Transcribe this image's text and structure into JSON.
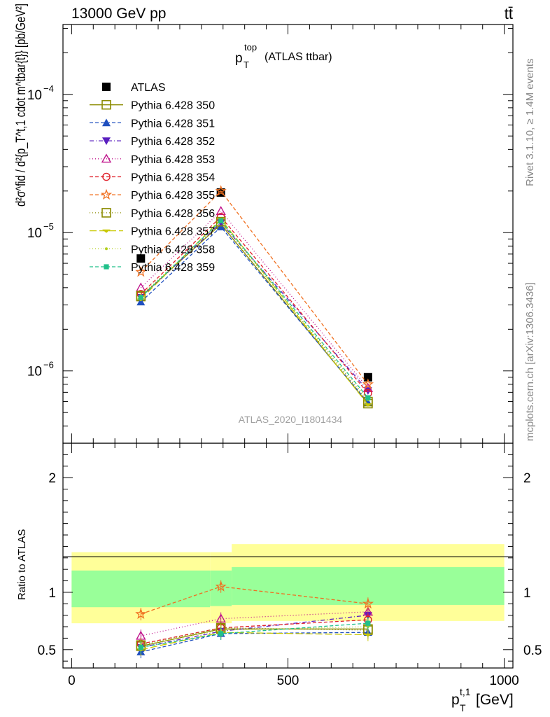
{
  "header": {
    "energy_label": "13000 GeV pp",
    "process_label": "tt̄"
  },
  "side_labels": {
    "rivet": "Rivet 3.1.10, ≥ 1.4M events",
    "mcplots": "mcplots.cern.ch [arXiv:1306.3436]"
  },
  "chart_data": [
    {
      "type": "line",
      "panel": "main",
      "title": "p_T^top (ATLAS ttbar)",
      "title_main": "p",
      "title_sup": "top",
      "title_sub": "T",
      "title_suffix": "(ATLAS ttbar)",
      "ylabel": "d²σ^fid / d²{p_T^t,1 cdot m^tbar{t}} [pb/GeV²]",
      "watermark": "ATLAS_2020_I1801434",
      "yscale": "log",
      "ylim": [
        3e-07,
        0.00032
      ],
      "xlim": [
        -20,
        1020
      ],
      "y_tick_labels": [
        "10^-6",
        "10^-5",
        "10^-4"
      ],
      "x": [
        160,
        345,
        685
      ],
      "series": [
        {
          "name": "ATLAS",
          "color": "#000000",
          "marker": "square-filled",
          "dash": "none",
          "values": [
            6.5e-06,
            1.95e-05,
            9e-07
          ]
        },
        {
          "name": "Pythia 6.428 350",
          "color": "#8b8b00",
          "marker": "square-open",
          "dash": "solid",
          "values": [
            3.45e-06,
            1.15e-05,
            5.8e-07
          ]
        },
        {
          "name": "Pythia 6.428 351",
          "color": "#1f4fbf",
          "marker": "triangle-up-filled",
          "dash": "5,3",
          "values": [
            3.15e-06,
            1.1e-05,
            5.9e-07
          ]
        },
        {
          "name": "Pythia 6.428 352",
          "color": "#5a1fbf",
          "marker": "triangle-down-filled",
          "dash": "6,3,1,3",
          "values": [
            3.4e-06,
            1.18e-05,
            7.2e-07
          ]
        },
        {
          "name": "Pythia 6.428 353",
          "color": "#c0148c",
          "marker": "triangle-up-open",
          "dash": "1,3",
          "values": [
            4e-06,
            1.43e-05,
            7.5e-07
          ]
        },
        {
          "name": "Pythia 6.428 354",
          "color": "#e0202a",
          "marker": "circle-open",
          "dash": "5,3",
          "values": [
            3.6e-06,
            1.3e-05,
            6.9e-07
          ]
        },
        {
          "name": "Pythia 6.428 355",
          "color": "#f07020",
          "marker": "star-open",
          "dash": "5,3",
          "values": [
            5.2e-06,
            2e-05,
            8e-07
          ]
        },
        {
          "name": "Pythia 6.428 356",
          "color": "#8b8b00",
          "marker": "square-open",
          "dash": "1,3",
          "values": [
            3.5e-06,
            1.2e-05,
            6e-07
          ]
        },
        {
          "name": "Pythia 6.428 357",
          "color": "#c8c800",
          "marker": "tri-filled",
          "dash": "10,4",
          "values": [
            3.3e-06,
            1.25e-05,
            5.7e-07
          ]
        },
        {
          "name": "Pythia 6.428 358",
          "color": "#b4d020",
          "marker": "dot",
          "dash": "1,3",
          "values": [
            3.5e-06,
            1.2e-05,
            6.2e-07
          ]
        },
        {
          "name": "Pythia 6.428 359",
          "color": "#20c08a",
          "marker": "square-filled-small",
          "dash": "5,3",
          "values": [
            3.4e-06,
            1.22e-05,
            6.4e-07
          ]
        }
      ]
    },
    {
      "type": "line",
      "panel": "ratio",
      "ylabel": "Ratio to ATLAS",
      "xlabel": "p_T^t,1 [GeV]",
      "xlabel_main": "p",
      "xlabel_sup": "t,1",
      "xlabel_sub": "T",
      "xlabel_suffix": "[GeV]",
      "xlim": [
        -20,
        1020
      ],
      "ylim": [
        0.34,
        2.3
      ],
      "x_ticks": [
        0,
        500,
        1000
      ],
      "y_ticks_labeled": [
        0.5,
        1,
        2
      ],
      "bands": [
        {
          "x_from": 0,
          "x_to": 320,
          "yellow": [
            0.73,
            1.35
          ],
          "green": [
            0.87,
            1.19
          ]
        },
        {
          "x_from": 320,
          "x_to": 370,
          "yellow": [
            0.73,
            1.35
          ],
          "green": [
            0.88,
            1.19
          ]
        },
        {
          "x_from": 370,
          "x_to": 1000,
          "yellow": [
            0.75,
            1.42
          ],
          "green": [
            0.89,
            1.22
          ]
        }
      ],
      "x": [
        160,
        345,
        685
      ],
      "series": [
        {
          "name": "Pythia 6.428 350",
          "color": "#8b8b00",
          "marker": "square-open",
          "dash": "solid",
          "values": [
            0.53,
            0.68,
            0.68
          ]
        },
        {
          "name": "Pythia 6.428 351",
          "color": "#1f4fbf",
          "marker": "triangle-up-filled",
          "dash": "5,3",
          "values": [
            0.48,
            0.64,
            0.65
          ]
        },
        {
          "name": "Pythia 6.428 352",
          "color": "#5a1fbf",
          "marker": "triangle-down-filled",
          "dash": "6,3,1,3",
          "values": [
            0.52,
            0.66,
            0.8
          ]
        },
        {
          "name": "Pythia 6.428 353",
          "color": "#c0148c",
          "marker": "triangle-up-open",
          "dash": "1,3",
          "values": [
            0.62,
            0.77,
            0.83
          ]
        },
        {
          "name": "Pythia 6.428 354",
          "color": "#e0202a",
          "marker": "circle-open",
          "dash": "5,3",
          "values": [
            0.55,
            0.69,
            0.76
          ]
        },
        {
          "name": "Pythia 6.428 355",
          "color": "#f07020",
          "marker": "star-open",
          "dash": "5,3",
          "values": [
            0.81,
            1.05,
            0.9
          ]
        },
        {
          "name": "Pythia 6.428 356",
          "color": "#8b8b00",
          "marker": "square-open",
          "dash": "1,3",
          "values": [
            0.54,
            0.69,
            0.67
          ]
        },
        {
          "name": "Pythia 6.428 357",
          "color": "#c8c800",
          "marker": "tri-filled",
          "dash": "10,4",
          "values": [
            0.5,
            0.65,
            0.63
          ]
        },
        {
          "name": "Pythia 6.428 358",
          "color": "#b4d020",
          "marker": "dot",
          "dash": "1,3",
          "values": [
            0.54,
            0.67,
            0.7
          ]
        },
        {
          "name": "Pythia 6.428 359",
          "color": "#20c08a",
          "marker": "square-filled-small",
          "dash": "5,3",
          "values": [
            0.52,
            0.64,
            0.73
          ]
        }
      ]
    }
  ]
}
